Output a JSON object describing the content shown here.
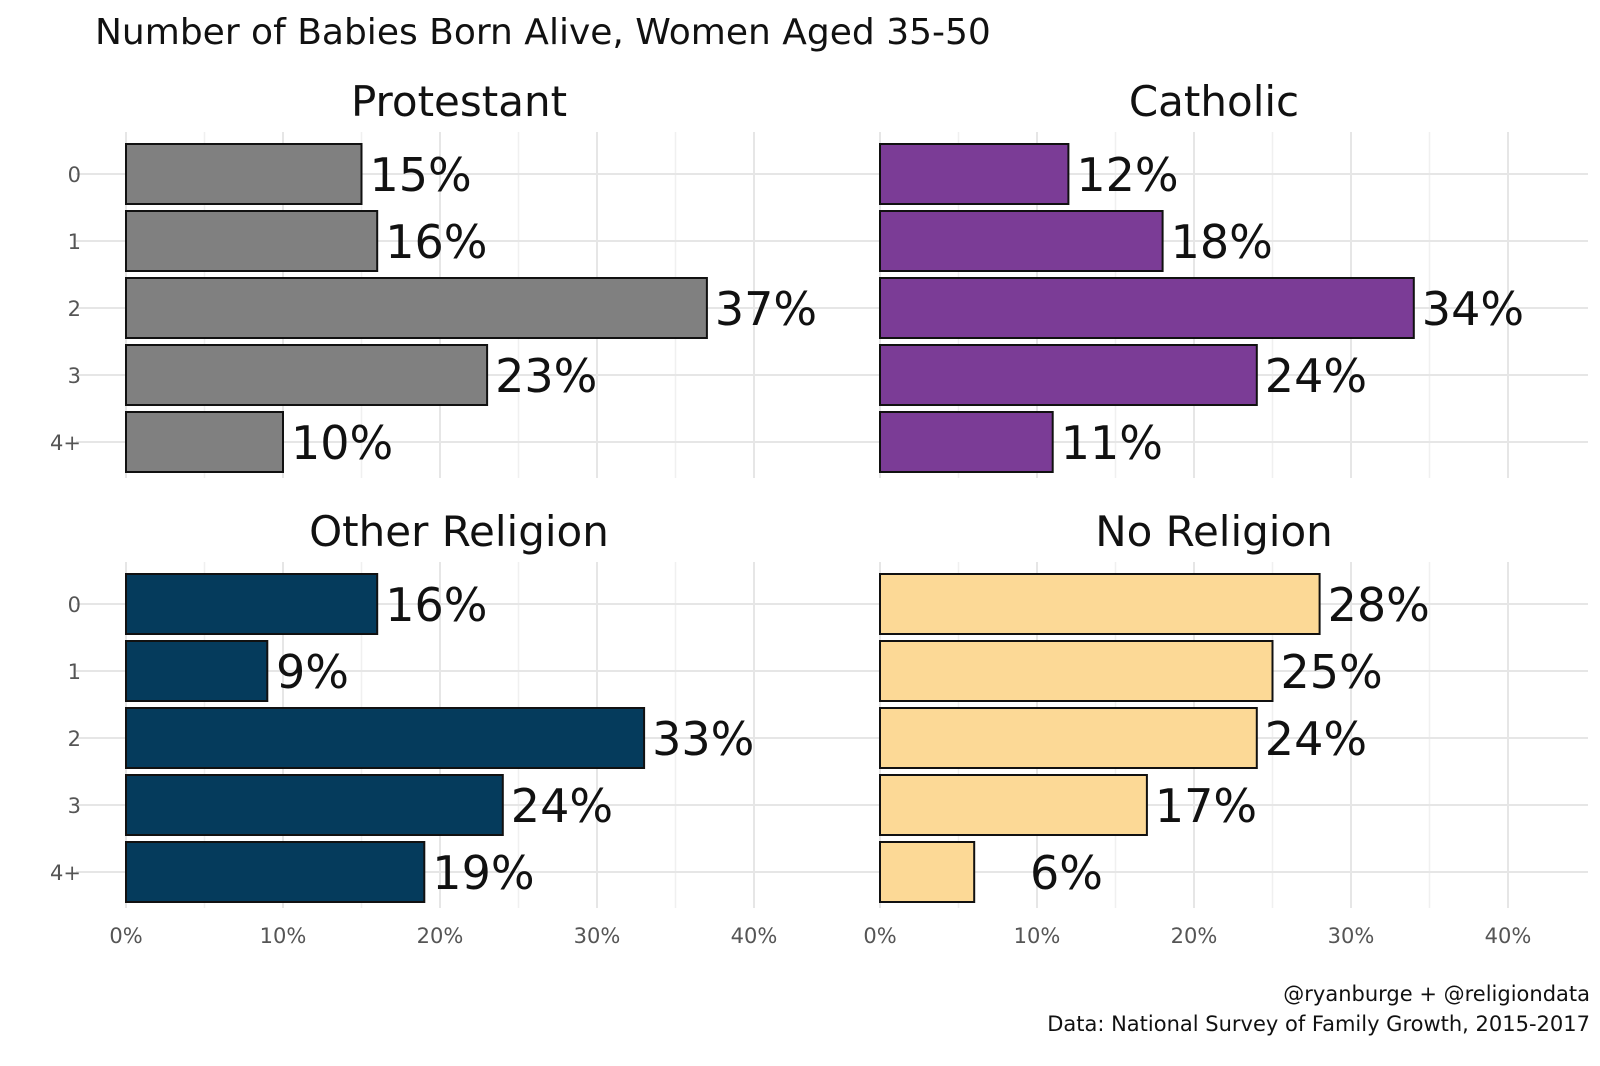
{
  "title": "Number of Babies Born Alive, Women Aged 35-50",
  "caption": {
    "line1": "@ryanburge + @religiondata",
    "line2": "Data: National Survey of Family Growth, 2015-2017"
  },
  "chart_data": {
    "type": "bar",
    "orientation": "horizontal",
    "title": "Number of Babies Born Alive, Women Aged 35-50",
    "categories": [
      "0",
      "1",
      "2",
      "3",
      "4+"
    ],
    "xlim": [
      0,
      44
    ],
    "x_ticks": [
      0,
      10,
      20,
      30,
      40
    ],
    "x_tick_labels": [
      "0%",
      "10%",
      "20%",
      "30%",
      "40%"
    ],
    "grid": true,
    "panels": [
      {
        "name": "Protestant",
        "color": "#808080",
        "values": [
          15,
          16,
          37,
          23,
          10
        ],
        "labels": [
          "15%",
          "16%",
          "37%",
          "23%",
          "10%"
        ]
      },
      {
        "name": "Catholic",
        "color": "#7b3c96",
        "values": [
          12,
          18,
          34,
          24,
          11
        ],
        "labels": [
          "12%",
          "18%",
          "34%",
          "24%",
          "11%"
        ]
      },
      {
        "name": "Other Religion",
        "color": "#053b5c",
        "values": [
          16,
          9,
          33,
          24,
          19
        ],
        "labels": [
          "16%",
          "9%",
          "33%",
          "24%",
          "19%"
        ]
      },
      {
        "name": "No Religion",
        "color": "#fcd996",
        "values": [
          28,
          25,
          24,
          17,
          6
        ],
        "labels": [
          "28%",
          "25%",
          "24%",
          "17%",
          "6%"
        ]
      }
    ]
  }
}
